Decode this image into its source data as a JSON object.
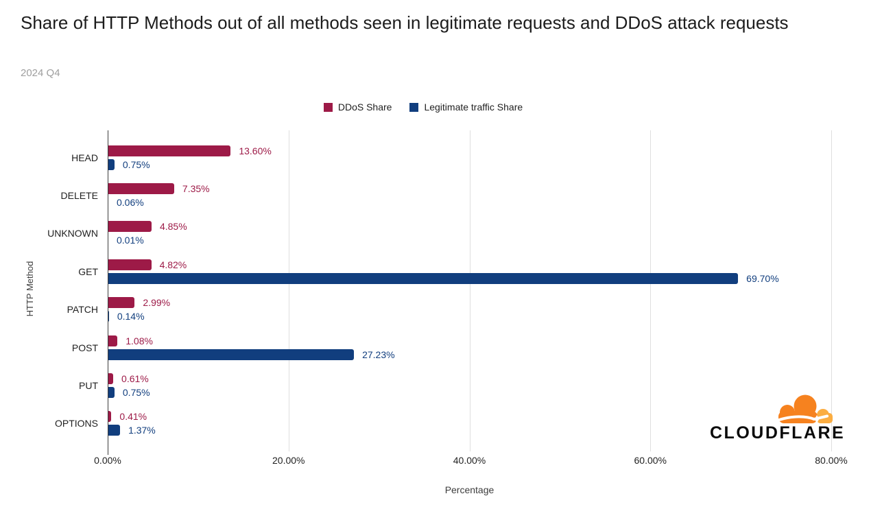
{
  "title": "Share of HTTP Methods out of all methods seen in legitimate requests and DDoS attack requests",
  "subtitle": "2024 Q4",
  "legend": [
    {
      "label": "DDoS Share",
      "color": "#9d1a47"
    },
    {
      "label": "Legitimate traffic Share",
      "color": "#113e7e"
    }
  ],
  "logo": {
    "name": "cloudflare-logo",
    "wordmark": "CLOUDFLARE",
    "cloud_color": "#F6821F",
    "cloud_accent_color": "#FBAD41"
  },
  "chart_data": {
    "type": "bar",
    "orientation": "horizontal",
    "title": "Share of HTTP Methods out of all methods seen in legitimate requests and DDoS attack requests",
    "subtitle": "2024 Q4",
    "xlabel": "Percentage",
    "ylabel": "HTTP Method",
    "xlim": [
      0,
      80
    ],
    "grid": true,
    "legend_position": "top",
    "categories": [
      "HEAD",
      "DELETE",
      "UNKNOWN",
      "GET",
      "PATCH",
      "POST",
      "PUT",
      "OPTIONS"
    ],
    "series": [
      {
        "name": "DDoS Share",
        "color": "#9d1a47",
        "values": [
          13.6,
          7.35,
          4.85,
          4.82,
          2.99,
          1.08,
          0.61,
          0.41
        ],
        "labels": [
          "13.60%",
          "7.35%",
          "4.85%",
          "4.82%",
          "2.99%",
          "1.08%",
          "0.61%",
          "0.41%"
        ]
      },
      {
        "name": "Legitimate traffic Share",
        "color": "#113e7e",
        "values": [
          0.75,
          0.06,
          0.01,
          69.7,
          0.14,
          27.23,
          0.75,
          1.37
        ],
        "labels": [
          "0.75%",
          "0.06%",
          "0.01%",
          "69.70%",
          "0.14%",
          "27.23%",
          "0.75%",
          "1.37%"
        ]
      }
    ],
    "xticks": [
      {
        "value": 0,
        "label": "0.00%"
      },
      {
        "value": 20,
        "label": "20.00%"
      },
      {
        "value": 40,
        "label": "40.00%"
      },
      {
        "value": 60,
        "label": "60.00%"
      },
      {
        "value": 80,
        "label": "80.00%"
      }
    ]
  }
}
